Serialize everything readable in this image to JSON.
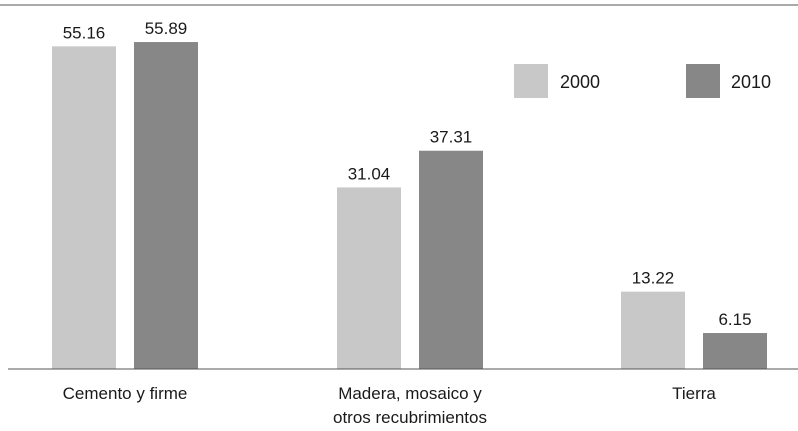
{
  "chart_data": {
    "type": "bar",
    "title": "",
    "xlabel": "",
    "ylabel": "",
    "ylim": [
      0,
      60
    ],
    "grid": false,
    "legend_position": "top-right",
    "categories": [
      [
        "Cemento y firme"
      ],
      [
        "Madera, mosaico y",
        "otros recubrimientos"
      ],
      [
        "Tierra"
      ]
    ],
    "series": [
      {
        "name": "2000",
        "color": "#c8c8c8",
        "values": [
          55.16,
          31.04,
          13.22
        ],
        "labels": [
          "55.16",
          "31.04",
          "13.22"
        ]
      },
      {
        "name": "2010",
        "color": "#878787",
        "values": [
          55.89,
          37.31,
          6.15
        ],
        "labels": [
          "55.89",
          "37.31",
          "6.15"
        ]
      }
    ]
  }
}
